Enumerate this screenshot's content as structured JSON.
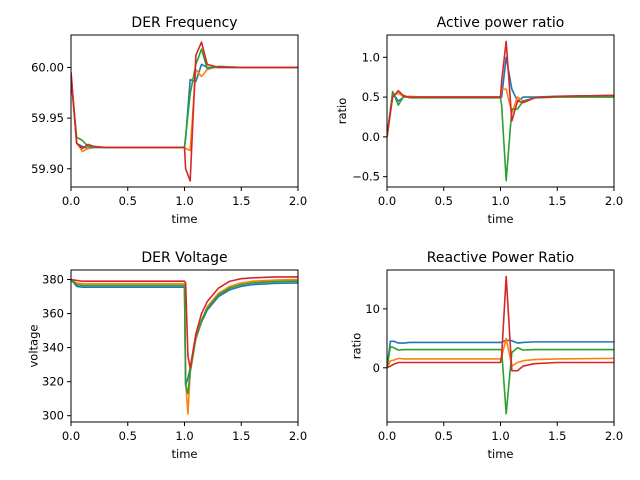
{
  "chart_data": [
    {
      "type": "line",
      "title": "DER Frequency",
      "xlabel": "time",
      "ylabel": "",
      "xlim": [
        0,
        2.0
      ],
      "ylim": [
        59.882,
        60.032
      ],
      "xticks": [
        0,
        0.5,
        1.0,
        1.5,
        2.0
      ],
      "xtick_labels": [
        "0.0",
        "0.5",
        "1.0",
        "1.5",
        "2.0"
      ],
      "yticks": [
        59.9,
        59.95,
        60.0
      ],
      "ytick_labels": [
        "59.90",
        "59.95",
        "60.00"
      ],
      "grid": false,
      "series": [
        {
          "color": "#1f77b4",
          "x": [
            0,
            0.05,
            0.1,
            0.15,
            0.2,
            0.3,
            0.5,
            1.0,
            1.01,
            1.05,
            1.1,
            1.15,
            1.2,
            1.3,
            1.5,
            2.0
          ],
          "y": [
            59.995,
            59.925,
            59.922,
            59.92,
            59.921,
            59.921,
            59.921,
            59.921,
            59.93,
            59.988,
            59.986,
            60.003,
            60.0,
            60.0,
            60.0,
            60.0
          ]
        },
        {
          "color": "#ff7f0e",
          "x": [
            0,
            0.05,
            0.1,
            0.15,
            0.2,
            0.3,
            0.5,
            1.0,
            1.01,
            1.05,
            1.1,
            1.15,
            1.2,
            1.3,
            1.5,
            2.0
          ],
          "y": [
            59.99,
            59.926,
            59.917,
            59.92,
            59.922,
            59.921,
            59.921,
            59.921,
            59.92,
            59.918,
            59.998,
            59.991,
            59.998,
            60.001,
            60.0,
            60.0
          ]
        },
        {
          "color": "#2ca02c",
          "x": [
            0,
            0.05,
            0.1,
            0.15,
            0.2,
            0.3,
            0.5,
            1.0,
            1.01,
            1.05,
            1.1,
            1.15,
            1.2,
            1.3,
            1.5,
            2.0
          ],
          "y": [
            59.99,
            59.931,
            59.928,
            59.922,
            59.921,
            59.921,
            59.921,
            59.921,
            59.932,
            59.974,
            60.003,
            60.018,
            59.999,
            60.001,
            60.0,
            60.0
          ]
        },
        {
          "color": "#d62728",
          "x": [
            0,
            0.05,
            0.1,
            0.15,
            0.2,
            0.3,
            0.5,
            1.0,
            1.01,
            1.05,
            1.1,
            1.15,
            1.2,
            1.3,
            1.5,
            2.0
          ],
          "y": [
            59.995,
            59.925,
            59.92,
            59.924,
            59.922,
            59.921,
            59.921,
            59.921,
            59.9,
            59.888,
            60.012,
            60.025,
            60.003,
            60.0,
            60.0,
            60.0
          ]
        }
      ]
    },
    {
      "type": "line",
      "title": "Active power ratio",
      "xlabel": "time",
      "ylabel": "ratio",
      "xlim": [
        0,
        2.0
      ],
      "ylim": [
        -0.63,
        1.28
      ],
      "xticks": [
        0,
        0.5,
        1.0,
        1.5,
        2.0
      ],
      "xtick_labels": [
        "0.0",
        "0.5",
        "1.0",
        "1.5",
        "2.0"
      ],
      "yticks": [
        -0.5,
        0.0,
        0.5,
        1.0
      ],
      "ytick_labels": [
        "−0.5",
        "0.0",
        "0.5",
        "1.0"
      ],
      "grid": false,
      "series": [
        {
          "color": "#1f77b4",
          "x": [
            0,
            0.05,
            0.1,
            0.15,
            0.2,
            0.3,
            0.5,
            1.0,
            1.01,
            1.05,
            1.1,
            1.15,
            1.2,
            1.3,
            1.5,
            2.0
          ],
          "y": [
            0.0,
            0.55,
            0.45,
            0.5,
            0.5,
            0.5,
            0.5,
            0.5,
            0.5,
            1.0,
            0.6,
            0.45,
            0.5,
            0.5,
            0.51,
            0.52
          ]
        },
        {
          "color": "#ff7f0e",
          "x": [
            0,
            0.05,
            0.1,
            0.15,
            0.2,
            0.3,
            0.5,
            1.0,
            1.01,
            1.05,
            1.1,
            1.15,
            1.2,
            1.3,
            1.5,
            2.0
          ],
          "y": [
            0.0,
            0.52,
            0.55,
            0.5,
            0.51,
            0.5,
            0.5,
            0.5,
            0.6,
            0.6,
            0.3,
            0.5,
            0.45,
            0.49,
            0.5,
            0.52
          ]
        },
        {
          "color": "#2ca02c",
          "x": [
            0,
            0.05,
            0.1,
            0.15,
            0.2,
            0.3,
            0.5,
            1.0,
            1.01,
            1.05,
            1.1,
            1.15,
            1.2,
            1.3,
            1.5,
            2.0
          ],
          "y": [
            0.0,
            0.57,
            0.4,
            0.52,
            0.49,
            0.49,
            0.49,
            0.49,
            0.4,
            -0.55,
            0.35,
            0.35,
            0.45,
            0.49,
            0.5,
            0.5
          ]
        },
        {
          "color": "#d62728",
          "x": [
            0,
            0.05,
            0.1,
            0.15,
            0.2,
            0.3,
            0.5,
            1.0,
            1.01,
            1.05,
            1.1,
            1.15,
            1.2,
            1.3,
            1.5,
            2.0
          ],
          "y": [
            0.0,
            0.5,
            0.58,
            0.51,
            0.5,
            0.5,
            0.5,
            0.5,
            0.7,
            1.2,
            0.2,
            0.45,
            0.43,
            0.49,
            0.51,
            0.52
          ]
        }
      ]
    },
    {
      "type": "line",
      "title": "DER Voltage",
      "xlabel": "time",
      "ylabel": "voltage",
      "xlim": [
        0,
        2.0
      ],
      "ylim": [
        296.3,
        385.6
      ],
      "xticks": [
        0,
        0.5,
        1.0,
        1.5,
        2.0
      ],
      "xtick_labels": [
        "0.0",
        "0.5",
        "1.0",
        "1.5",
        "2.0"
      ],
      "yticks": [
        300,
        320,
        340,
        360,
        380
      ],
      "ytick_labels": [
        "300",
        "320",
        "340",
        "360",
        "380"
      ],
      "grid": false,
      "series": [
        {
          "color": "#1f77b4",
          "x": [
            0,
            0.05,
            0.1,
            1.0,
            1.01,
            1.03,
            1.05,
            1.1,
            1.15,
            1.2,
            1.3,
            1.4,
            1.5,
            1.6,
            1.8,
            2.0
          ],
          "y": [
            380,
            376,
            375.5,
            375.5,
            318,
            322,
            328,
            345,
            355,
            362,
            370,
            374,
            376,
            377,
            377.8,
            378
          ]
        },
        {
          "color": "#ff7f0e",
          "x": [
            0,
            0.05,
            0.1,
            1.0,
            1.01,
            1.03,
            1.05,
            1.1,
            1.15,
            1.2,
            1.3,
            1.4,
            1.5,
            1.6,
            1.8,
            2.0
          ],
          "y": [
            380,
            378,
            377.5,
            377.5,
            320,
            301,
            325,
            345,
            356,
            364,
            372,
            376,
            378,
            379,
            379.7,
            380
          ]
        },
        {
          "color": "#2ca02c",
          "x": [
            0,
            0.05,
            0.1,
            1.0,
            1.01,
            1.03,
            1.05,
            1.1,
            1.15,
            1.2,
            1.3,
            1.4,
            1.5,
            1.6,
            1.8,
            2.0
          ],
          "y": [
            380,
            377,
            376.5,
            376.5,
            318,
            313,
            326,
            346,
            356,
            363,
            371,
            375,
            377,
            378,
            378.8,
            379
          ]
        },
        {
          "color": "#d62728",
          "x": [
            0,
            0.05,
            0.1,
            1.0,
            1.01,
            1.03,
            1.05,
            1.1,
            1.15,
            1.2,
            1.3,
            1.4,
            1.5,
            1.6,
            1.8,
            2.0
          ],
          "y": [
            380,
            379.5,
            379,
            379,
            378,
            335,
            328,
            348,
            360,
            367,
            375,
            379,
            380.5,
            381,
            381.5,
            381.5
          ]
        }
      ]
    },
    {
      "type": "line",
      "title": "Reactive Power Ratio",
      "xlabel": "time",
      "ylabel": "ratio",
      "xlim": [
        0,
        2.0
      ],
      "ylim": [
        -9.2,
        16.6
      ],
      "xticks": [
        0,
        0.5,
        1.0,
        1.5,
        2.0
      ],
      "xtick_labels": [
        "0.0",
        "0.5",
        "1.0",
        "1.5",
        "2.0"
      ],
      "yticks": [
        0,
        10
      ],
      "ytick_labels": [
        "0",
        "10"
      ],
      "grid": false,
      "series": [
        {
          "color": "#1f77b4",
          "x": [
            0,
            0.03,
            0.06,
            0.1,
            0.15,
            0.2,
            0.5,
            1.0,
            1.01,
            1.05,
            1.1,
            1.15,
            1.2,
            1.3,
            1.5,
            2.0
          ],
          "y": [
            0,
            4.5,
            4.5,
            4.2,
            4.2,
            4.3,
            4.3,
            4.3,
            4.3,
            4.7,
            4.6,
            4.2,
            4.3,
            4.4,
            4.4,
            4.4
          ]
        },
        {
          "color": "#ff7f0e",
          "x": [
            0,
            0.03,
            0.06,
            0.1,
            0.15,
            0.2,
            0.5,
            1.0,
            1.01,
            1.05,
            1.1,
            1.15,
            1.2,
            1.3,
            1.5,
            2.0
          ],
          "y": [
            0,
            1.2,
            1.3,
            1.6,
            1.5,
            1.5,
            1.5,
            1.5,
            1.8,
            5.0,
            0.3,
            0.9,
            1.2,
            1.4,
            1.5,
            1.6
          ]
        },
        {
          "color": "#2ca02c",
          "x": [
            0,
            0.03,
            0.06,
            0.1,
            0.15,
            0.2,
            0.5,
            1.0,
            1.01,
            1.05,
            1.1,
            1.15,
            1.2,
            1.3,
            1.5,
            2.0
          ],
          "y": [
            0,
            3.6,
            3.4,
            3.0,
            3.1,
            3.1,
            3.1,
            3.1,
            3.0,
            -7.8,
            2.6,
            3.4,
            3.0,
            3.1,
            3.1,
            3.1
          ]
        },
        {
          "color": "#d62728",
          "x": [
            0,
            0.03,
            0.06,
            0.1,
            0.15,
            0.2,
            0.5,
            1.0,
            1.01,
            1.05,
            1.1,
            1.15,
            1.2,
            1.3,
            1.5,
            2.0
          ],
          "y": [
            0,
            0.3,
            0.6,
            0.9,
            0.9,
            0.9,
            0.9,
            0.9,
            2.0,
            15.5,
            -0.5,
            -0.5,
            0.3,
            0.7,
            0.9,
            0.9
          ]
        }
      ]
    }
  ]
}
